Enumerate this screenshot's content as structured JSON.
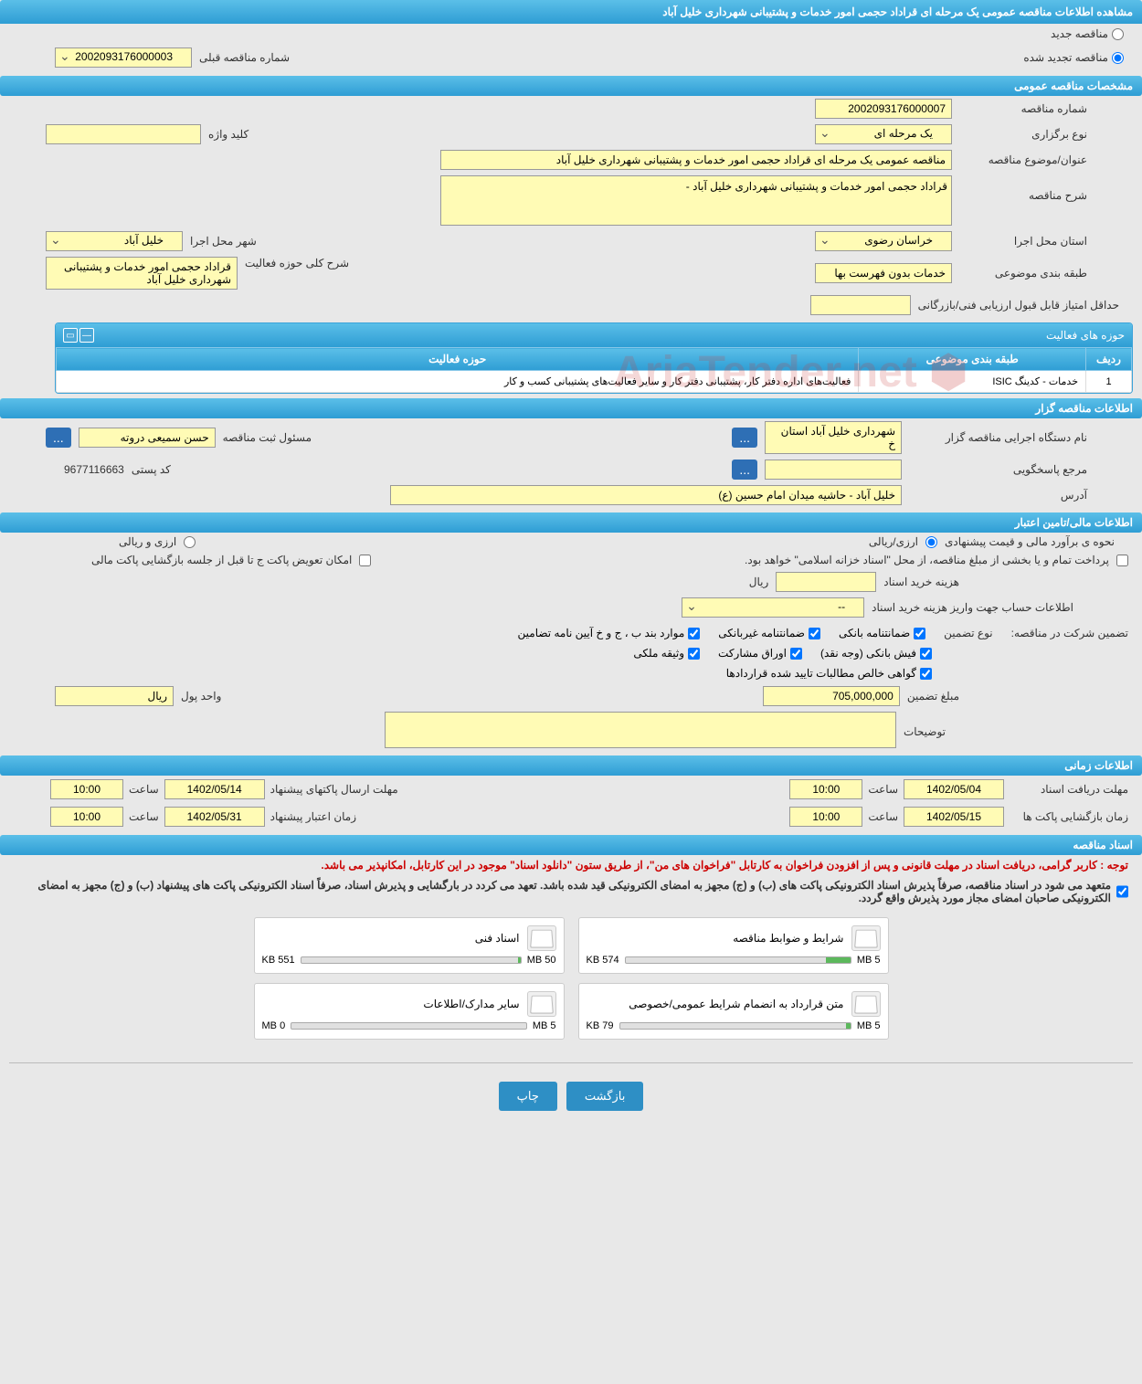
{
  "header": {
    "title": "مشاهده اطلاعات مناقصه عمومی یک مرحله ای قراداد حجمی امور خدمات و پشتیبانی شهرداری خلیل آباد"
  },
  "tender_type": {
    "new": "مناقصه جدید",
    "renewed": "مناقصه تجدید شده",
    "prev_number_label": "شماره مناقصه قبلی",
    "prev_number_value": "2002093176000003"
  },
  "sections": {
    "general": "مشخصات مناقصه عمومی",
    "organizer": "اطلاعات مناقصه گزار",
    "financial": "اطلاعات مالی/تامین اعتبار",
    "timing": "اطلاعات زمانی",
    "docs": "اسناد مناقصه"
  },
  "general": {
    "number_label": "شماره مناقصه",
    "number_value": "2002093176000007",
    "holding_type_label": "نوع برگزاری",
    "holding_type_value": "یک مرحله ای",
    "keyword_label": "کلید واژه",
    "keyword_value": "",
    "subject_label": "عنوان/موضوع مناقصه",
    "subject_value": "مناقصه عمومی یک مرحله ای قراداد حجمی امور خدمات و پشتیبانی شهرداری خلیل آباد",
    "desc_label": "شرح مناقصه",
    "desc_value": "قراداد حجمی امور خدمات و پشتیبانی شهرداری خلیل آباد -",
    "province_label": "استان محل اجرا",
    "province_value": "خراسان رضوی",
    "city_label": "شهر محل اجرا",
    "city_value": "خلیل آباد",
    "category_label": "طبقه بندی موضوعی",
    "category_value": "خدمات بدون فهرست بها",
    "activity_scope_label": "شرح کلی حوزه فعالیت",
    "activity_scope_value": "قراداد حجمی امور خدمات و پشتیبانی شهرداری خلیل آباد",
    "min_score_label": "حداقل امتیاز قابل قبول ارزیابی فنی/بازرگانی"
  },
  "activities": {
    "title": "حوزه های فعالیت",
    "col_row": "ردیف",
    "col_category": "طبقه بندی موضوعی",
    "col_scope": "حوزه فعالیت",
    "rows": [
      {
        "n": "1",
        "cat": "خدمات - کدینگ ISIC",
        "scope": "فعالیت‌های اداره دفتر کار، پشتیبانی دفتر کار و سایر فعالیت‌های پشتیبانی کسب و کار"
      }
    ]
  },
  "organizer": {
    "agency_label": "نام دستگاه اجرایی مناقصه گزار",
    "agency_value": "شهرداری خلیل آباد استان خ",
    "registrar_label": "مسئول ثبت مناقصه",
    "registrar_value": "حسن سمیعی دروته",
    "responder_label": "مرجع پاسخگویی",
    "responder_value": "",
    "postal_label": "کد پستی",
    "postal_value": "9677116663",
    "address_label": "آدرس",
    "address_value": "خلیل آباد - حاشیه میدان امام حسین (ع)"
  },
  "financial": {
    "estimate_label": "نحوه ی برآورد مالی و قیمت پیشنهادی",
    "currency_rial": "ارزی/ریالی",
    "currency_both": "ارزی و ریالی",
    "payment_note": "پرداخت تمام و یا بخشی از مبلغ مناقصه، از محل \"اسناد خزانه اسلامی\" خواهد بود.",
    "replace_env_label": "امکان تعویض پاکت ج تا قبل از جلسه بازگشایی پاکت مالی",
    "doc_cost_label": "هزینه خرید اسناد",
    "doc_cost_value": "",
    "rial_suffix": "ریال",
    "account_info_label": "اطلاعات حساب جهت واریز هزینه خرید اسناد",
    "account_info_value": "--",
    "guarantee_label": "تضمین شرکت در مناقصه:",
    "guarantee_type_label": "نوع تضمین",
    "g_bank": "ضمانتنامه بانکی",
    "g_nonbank": "ضمانتنامه غیربانکی",
    "g_clauses": "موارد بند ب ، ج و خ آیین نامه تضامین",
    "g_cash": "فیش بانکی (وجه نقد)",
    "g_securities": "اوراق مشارکت",
    "g_property": "وثیقه ملکی",
    "g_receivables": "گواهی خالص مطالبات تایید شده قراردادها",
    "guarantee_amount_label": "مبلغ تضمین",
    "guarantee_amount_value": "705,000,000",
    "currency_unit_label": "واحد پول",
    "currency_unit_value": "ریال",
    "notes_label": "توضیحات"
  },
  "timing": {
    "receive_deadline_label": "مهلت دریافت اسناد",
    "receive_deadline_date": "1402/05/04",
    "receive_deadline_time": "10:00",
    "send_deadline_label": "مهلت ارسال پاکتهای پیشنهاد",
    "send_deadline_date": "1402/05/14",
    "send_deadline_time": "10:00",
    "open_time_label": "زمان بازگشایی پاکت ها",
    "open_date": "1402/05/15",
    "open_time": "10:00",
    "validity_label": "زمان اعتبار پیشنهاد",
    "validity_date": "1402/05/31",
    "validity_time": "10:00",
    "hour_label": "ساعت"
  },
  "docs_notice": {
    "red": "توجه : کاربر گرامی، دریافت اسناد در مهلت قانونی و پس از افزودن فراخوان به کارتابل \"فراخوان های من\"، از طریق ستون \"دانلود اسناد\" موجود در این کارتابل، امکانپذیر می باشد.",
    "black": "متعهد می شود در اسناد مناقصه، صرفاً پذیرش اسناد الکترونیکی پاکت های (ب) و (ج) مجهز به امضای الکترونیکی قید شده باشد. تعهد می کردد در بارگشایی و پذیرش اسناد، صرفاً اسناد الکترونیکی پاکت های پیشنهاد (ب) و (ج) مجهز به امضای الکترونیکی صاحبان امضای مجاز مورد پذیرش واقع گردد."
  },
  "docs": {
    "cards": [
      {
        "title": "شرایط و ضوابط مناقصه",
        "size": "574 KB",
        "max": "5 MB",
        "pct": 11
      },
      {
        "title": "اسناد فنی",
        "size": "551 KB",
        "max": "50 MB",
        "pct": 1
      },
      {
        "title": "متن قرارداد به انضمام شرایط عمومی/خصوصی",
        "size": "79 KB",
        "max": "5 MB",
        "pct": 2
      },
      {
        "title": "سایر مدارک/اطلاعات",
        "size": "0 MB",
        "max": "5 MB",
        "pct": 0
      }
    ]
  },
  "footer": {
    "back": "بازگشت",
    "print": "چاپ"
  },
  "watermark": "AriaTender.net",
  "colors": {
    "header_grad_top": "#5bbfe8",
    "header_grad_bot": "#2e9dd4",
    "field_bg": "#fffbb5",
    "body_bg": "#e8e8e8",
    "btn_bg": "#2e8fc5"
  }
}
